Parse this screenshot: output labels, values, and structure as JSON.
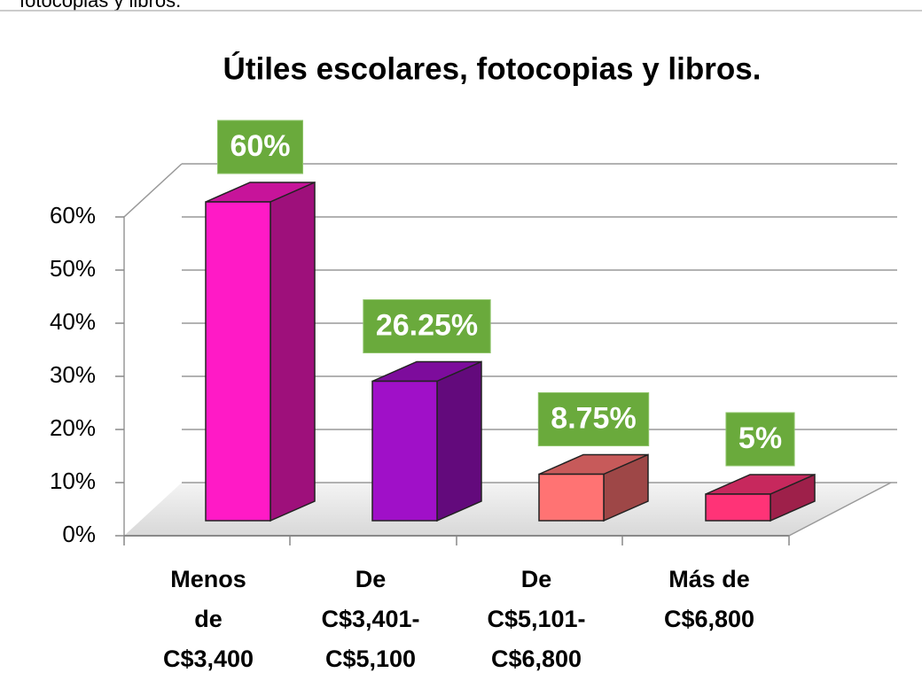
{
  "caption": "fotocopias y libros.",
  "chart_data": {
    "type": "bar3d",
    "title": "Útiles escolares, fotocopias y libros.",
    "categories": [
      "Menos\nde\nC$3,400",
      "De\nC$3,401-\nC$5,100",
      "De\nC$5,101-\nC$6,800",
      "Más de\nC$6,800"
    ],
    "values": [
      60,
      26.25,
      8.75,
      5
    ],
    "value_labels": [
      "60%",
      "26.25%",
      "8.75%",
      "5%"
    ],
    "colors": [
      "#ff1ac6",
      "#a010c8",
      "#ff7373",
      "#ff3377"
    ],
    "label_color": "#6aaa3c",
    "ylim": [
      0,
      60
    ],
    "yticks": [
      {
        "value": 0,
        "label": "0%"
      },
      {
        "value": 10,
        "label": "10%"
      },
      {
        "value": 20,
        "label": "20%"
      },
      {
        "value": 30,
        "label": "30%"
      },
      {
        "value": 40,
        "label": "40%"
      },
      {
        "value": 50,
        "label": "50%"
      },
      {
        "value": 60,
        "label": "60%"
      }
    ],
    "grid": true
  }
}
